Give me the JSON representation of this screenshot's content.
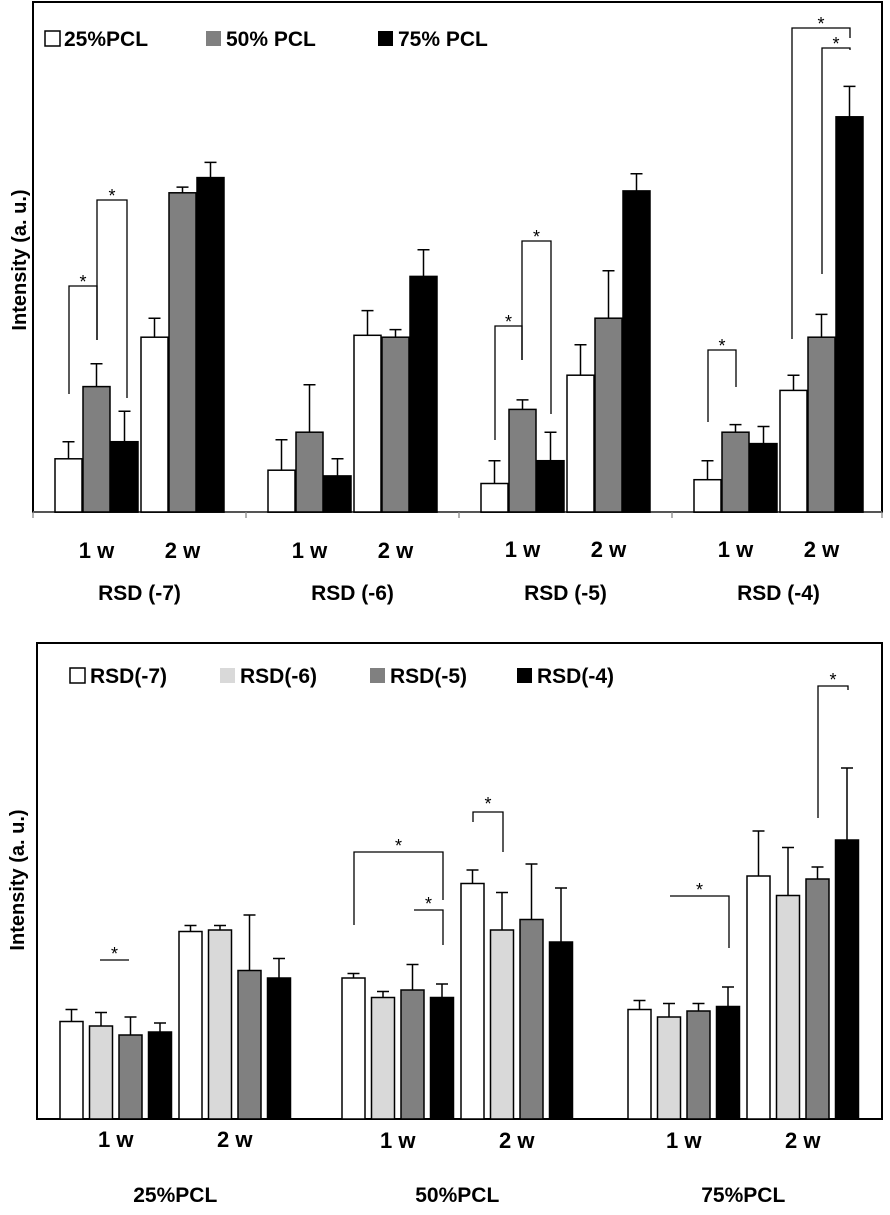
{
  "chart_data": [
    {
      "type": "bar",
      "ylabel": "Intensity (a. u.)",
      "ylim": [
        0,
        100
      ],
      "legend": {
        "placement": "top-left",
        "entries": [
          "25%PCL",
          "50% PCL",
          "75% PCL"
        ]
      },
      "series_colors": [
        "#ffffff",
        "#808080",
        "#000000"
      ],
      "groups": [
        {
          "label": "RSD (-7)",
          "subgroups": [
            {
              "label": "1 w",
              "values": [
                14,
                33,
                18.5
              ],
              "errors": [
                4.5,
                6,
                8
              ]
            },
            {
              "label": "2 w",
              "values": [
                46,
                84,
                88
              ],
              "errors": [
                5,
                1.5,
                4
              ]
            }
          ]
        },
        {
          "label": "RSD (-6)",
          "subgroups": [
            {
              "label": "1 w",
              "values": [
                11,
                21,
                9.5
              ],
              "errors": [
                8,
                12.5,
                4.5
              ]
            },
            {
              "label": "2 w",
              "values": [
                46.5,
                46,
                62
              ],
              "errors": [
                6.5,
                2,
                7
              ]
            }
          ]
        },
        {
          "label": "RSD (-5)",
          "subgroups": [
            {
              "label": "1 w",
              "values": [
                7.5,
                27,
                13.5
              ],
              "errors": [
                6,
                2.5,
                7.5
              ]
            },
            {
              "label": "2 w",
              "values": [
                36,
                51,
                84.5
              ],
              "errors": [
                8,
                12.5,
                4.5
              ]
            }
          ]
        },
        {
          "label": "RSD (-4)",
          "subgroups": [
            {
              "label": "1 w",
              "values": [
                8.5,
                21,
                18
              ],
              "errors": [
                5,
                2,
                4.5
              ]
            },
            {
              "label": "2 w",
              "values": [
                32,
                46,
                104
              ],
              "errors": [
                4,
                6,
                8
              ]
            }
          ]
        }
      ],
      "significance_marks": [
        {
          "label": "*",
          "group": 0,
          "between": [
            "1 w 25%PCL",
            "1 w 50% PCL"
          ]
        },
        {
          "label": "*",
          "group": 0,
          "between": [
            "1 w 50% PCL",
            "1 w 75% PCL"
          ]
        },
        {
          "label": "*",
          "group": 2,
          "between": [
            "1 w 25%PCL",
            "1 w 50% PCL"
          ]
        },
        {
          "label": "*",
          "group": 2,
          "between": [
            "1 w 50% PCL",
            "1 w 75% PCL"
          ]
        },
        {
          "label": "*",
          "group": 3,
          "between": [
            "1 w 25%PCL",
            "1 w 50% PCL"
          ]
        },
        {
          "label": "*",
          "group": 3,
          "between": [
            "2 w 50% PCL",
            "2 w 75% PCL"
          ]
        },
        {
          "label": "*",
          "group": 3,
          "between": [
            "2 w 25%PCL",
            "2 w 75% PCL"
          ]
        }
      ]
    },
    {
      "type": "bar",
      "ylabel": "Intensity (a. u.)",
      "ylim": [
        0,
        100
      ],
      "legend": {
        "placement": "top-left",
        "entries": [
          "RSD(-7)",
          "RSD(-6)",
          "RSD(-5)",
          "RSD(-4)"
        ]
      },
      "series_colors": [
        "#ffffff",
        "#d9d9d9",
        "#808080",
        "#000000"
      ],
      "groups": [
        {
          "label": "25%PCL",
          "subgroups": [
            {
              "label": "1 w",
              "values": [
                32.5,
                31,
                28,
                29
              ],
              "errors": [
                4,
                4.5,
                6,
                3
              ]
            },
            {
              "label": "2 w",
              "values": [
                62.5,
                63,
                49.5,
                47
              ],
              "errors": [
                2,
                1.5,
                18.5,
                6.5
              ]
            }
          ]
        },
        {
          "label": "50%PCL",
          "subgroups": [
            {
              "label": "1 w",
              "values": [
                47,
                40.5,
                43,
                40.5
              ],
              "errors": [
                1.5,
                2,
                8.5,
                4.5
              ]
            },
            {
              "label": "2 w",
              "values": [
                78.5,
                63,
                66.5,
                59
              ],
              "errors": [
                4.5,
                12.5,
                18.5,
                18
              ]
            }
          ]
        },
        {
          "label": "75%PCL",
          "subgroups": [
            {
              "label": "1 w",
              "values": [
                36.5,
                34,
                36,
                37.5
              ],
              "errors": [
                3,
                4.5,
                2.5,
                6.5
              ]
            },
            {
              "label": "2 w",
              "values": [
                81,
                74.5,
                80,
                93
              ],
              "errors": [
                15,
                16,
                4,
                24
              ]
            }
          ]
        }
      ],
      "significance_marks": [
        {
          "label": "*",
          "group": 0,
          "between": [
            "1 w RSD(-6)",
            "1 w RSD(-5)"
          ]
        },
        {
          "label": "*",
          "group": 1,
          "between": [
            "1 w RSD(-7)",
            "1 w RSD(-4)"
          ]
        },
        {
          "label": "*",
          "group": 1,
          "between": [
            "1 w RSD(-5)",
            "1 w RSD(-4)"
          ]
        },
        {
          "label": "*",
          "group": 1,
          "between": [
            "2 w RSD(-7)",
            "2 w RSD(-6)"
          ]
        },
        {
          "label": "*",
          "group": 2,
          "between": [
            "1 w RSD(-6)",
            "1 w RSD(-4)"
          ]
        },
        {
          "label": "*",
          "group": 2,
          "between": [
            "2 w RSD(-5)",
            "2 w RSD(-4)"
          ]
        }
      ]
    }
  ]
}
